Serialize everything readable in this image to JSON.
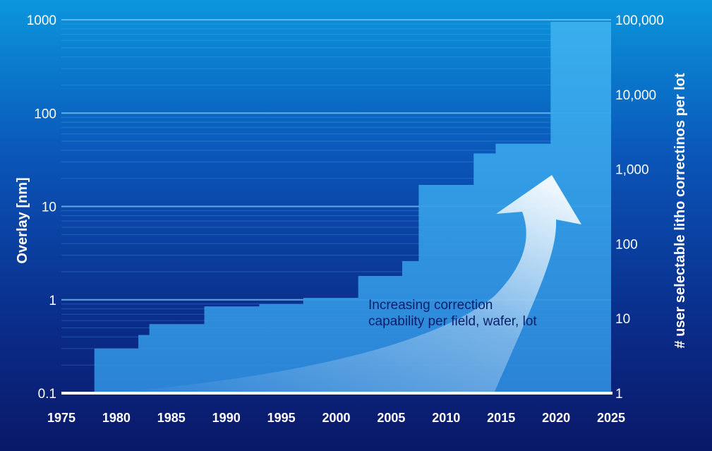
{
  "chart_data": {
    "type": "area",
    "x_ticks": [
      "1975",
      "1980",
      "1985",
      "1990",
      "1995",
      "2000",
      "2005",
      "2010",
      "2015",
      "2020",
      "2025"
    ],
    "xlim": [
      1975,
      2025
    ],
    "y_left": {
      "label": "Overlay [nm]",
      "scale": "log",
      "lim": [
        0.1,
        1000
      ],
      "ticks": [
        "0.1",
        "1",
        "10",
        "100",
        "1000"
      ]
    },
    "y_right": {
      "label": "# user selectable litho correctinos per lot",
      "scale": "log",
      "lim": [
        1,
        100000
      ],
      "ticks": [
        "1",
        "10",
        "100",
        "1,000",
        "10,000",
        "100,000"
      ]
    },
    "series": [
      {
        "step": "post",
        "x": [
          1978,
          1982,
          1983,
          1988,
          1993,
          1997,
          2002,
          2006,
          2007.5,
          2012.5,
          2014.5,
          2019.5,
          2025
        ],
        "y": [
          0.3,
          0.42,
          0.55,
          0.85,
          0.9,
          1.05,
          1.8,
          2.6,
          17,
          37,
          47,
          950,
          950
        ]
      }
    ],
    "annotation": {
      "line1": "Increasing correction",
      "line2": "capability per field, wafer, lot"
    },
    "colors": {
      "bg_top": "#0b8fd6",
      "bg_mid": "#0a3a9e",
      "bg_bottom": "#0a1e6e",
      "area": "#3aa0e6",
      "annotation_text": "#0b1e6b",
      "tick_text": "#ffffff"
    }
  }
}
